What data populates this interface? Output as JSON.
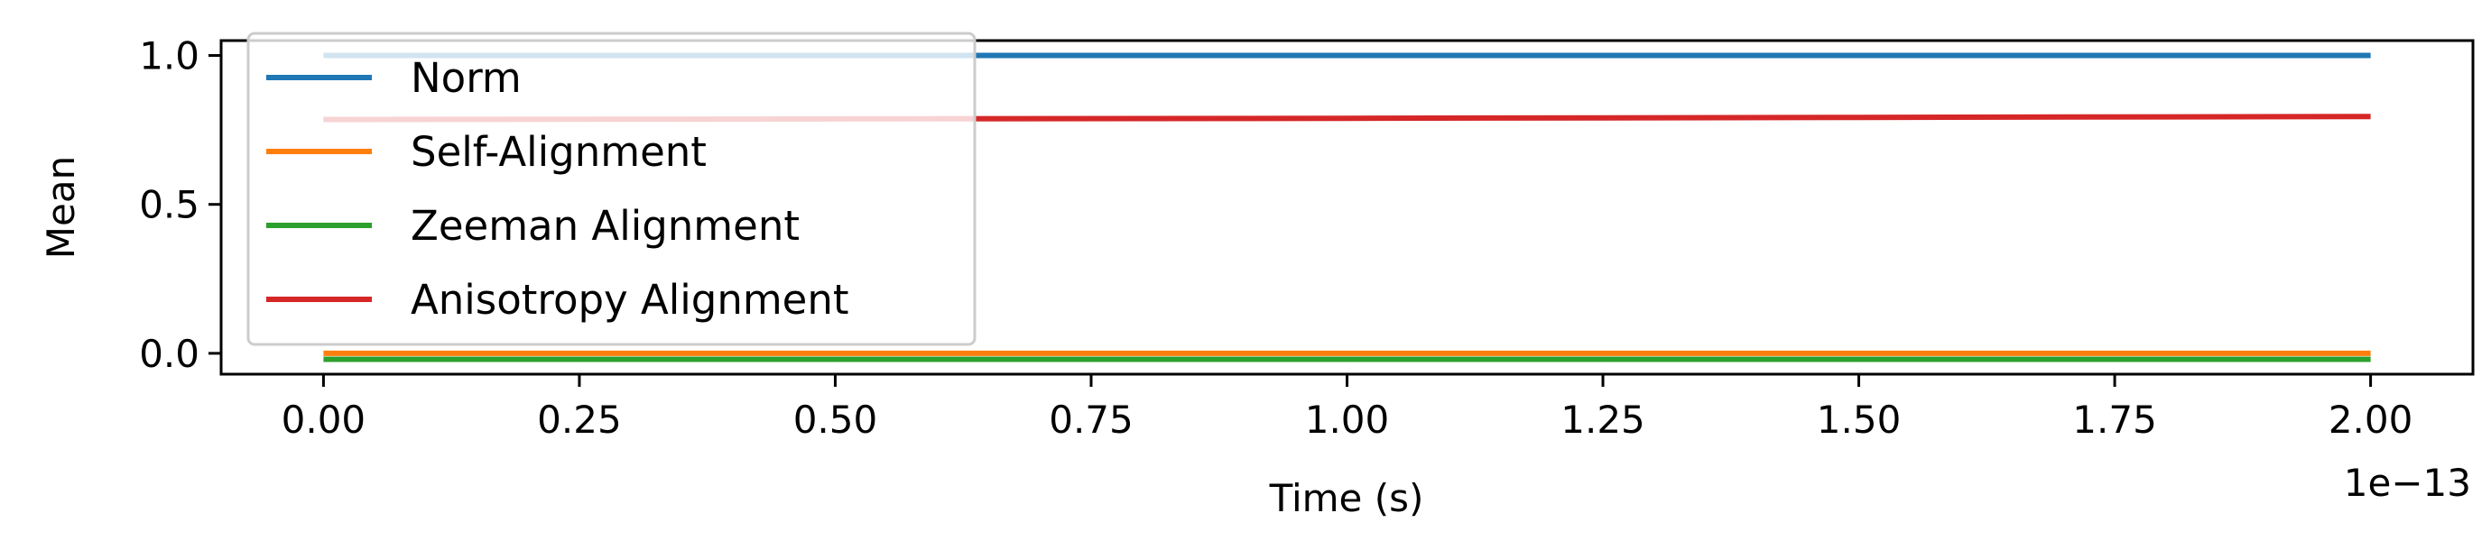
{
  "chart_data": {
    "type": "line",
    "xlabel": "Time (s)",
    "ylabel": "Mean",
    "x_offset_label": "1e−13",
    "xlim": [
      -0.1,
      2.1
    ],
    "ylim": [
      -0.07,
      1.05
    ],
    "xticks": [
      0.0,
      0.25,
      0.5,
      0.75,
      1.0,
      1.25,
      1.5,
      1.75,
      2.0
    ],
    "xtick_labels": [
      "0.00",
      "0.25",
      "0.50",
      "0.75",
      "1.00",
      "1.25",
      "1.50",
      "1.75",
      "2.00"
    ],
    "yticks": [
      0.0,
      0.5,
      1.0
    ],
    "ytick_labels": [
      "0.0",
      "0.5",
      "1.0"
    ],
    "grid": false,
    "legend_position": "upper-left",
    "series": [
      {
        "name": "Norm",
        "color": "#1f77b4",
        "x": [
          0.0,
          2.0
        ],
        "y": [
          1.0,
          1.0
        ]
      },
      {
        "name": "Self-Alignment",
        "color": "#ff7f0e",
        "x": [
          0.0,
          2.0
        ],
        "y": [
          0.0,
          0.0
        ]
      },
      {
        "name": "Zeeman Alignment",
        "color": "#2ca02c",
        "x": [
          0.0,
          2.0
        ],
        "y": [
          -0.02,
          -0.02
        ]
      },
      {
        "name": "Anisotropy Alignment",
        "color": "#d62728",
        "x": [
          0.0,
          0.5,
          1.0,
          1.5,
          2.0
        ],
        "y": [
          0.785,
          0.787,
          0.789,
          0.792,
          0.795
        ]
      }
    ]
  }
}
